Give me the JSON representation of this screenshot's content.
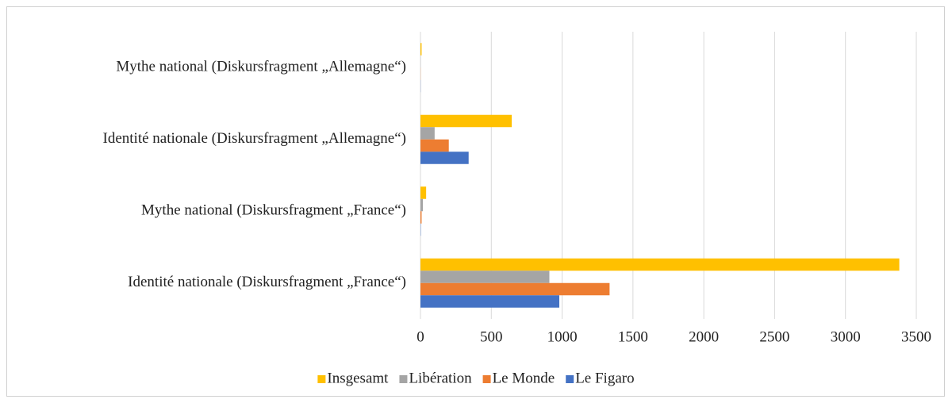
{
  "chart_data": {
    "type": "bar",
    "orientation": "horizontal",
    "categories": [
      "Identité nationale (Diskursfragment „France“)",
      "Mythe national (Diskursfragment „France“)",
      "Identité nationale (Diskursfragment „Allemagne“)",
      "Mythe national (Diskursfragment „Allemagne“)"
    ],
    "series": [
      {
        "name": "Insgesamt",
        "color": "#FFC000",
        "values": [
          3380,
          40,
          644,
          8
        ]
      },
      {
        "name": "Libération",
        "color": "#A5A5A5",
        "values": [
          910,
          17,
          100,
          1
        ]
      },
      {
        "name": "Le Monde",
        "color": "#ED7D31",
        "values": [
          1335,
          8,
          200,
          1
        ]
      },
      {
        "name": "Le Figaro",
        "color": "#4472C4",
        "values": [
          980,
          2,
          340,
          1
        ]
      }
    ],
    "xlim": [
      0,
      3500
    ],
    "xticks": [
      0,
      500,
      1000,
      1500,
      2000,
      2500,
      3000,
      3500
    ],
    "grid": true,
    "legend": "bottom"
  }
}
